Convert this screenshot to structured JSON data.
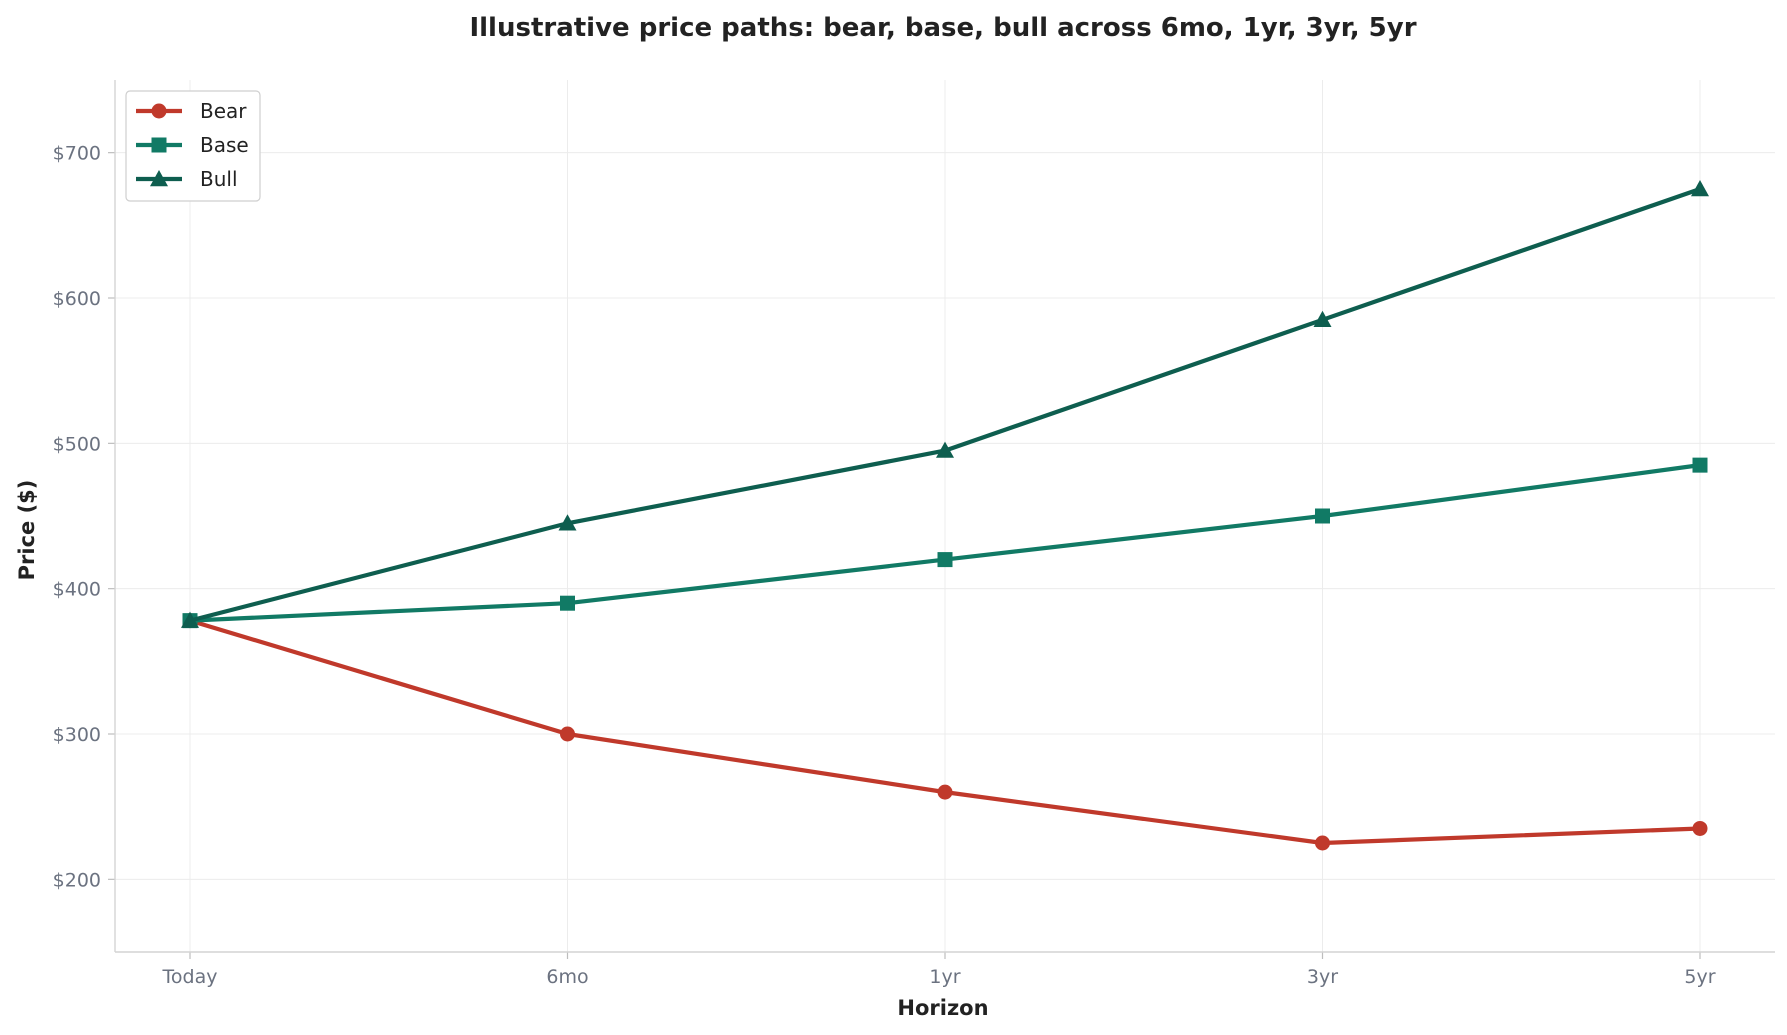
{
  "chart_data": {
    "type": "line",
    "title": "Illustrative price paths: bear, base, bull across 6mo, 1yr, 3yr, 5yr",
    "xlabel": "Horizon",
    "ylabel": "Price ($)",
    "categories": [
      "Today",
      "6mo",
      "1yr",
      "3yr",
      "5yr"
    ],
    "ylim": [
      150,
      750
    ],
    "yticks": [
      200,
      300,
      400,
      500,
      600,
      700
    ],
    "ytick_labels": [
      "$200",
      "$300",
      "$400",
      "$500",
      "$600",
      "$700"
    ],
    "grid": true,
    "legend_position": "top-left",
    "series": [
      {
        "name": "Bear",
        "values": [
          378,
          300,
          260,
          225,
          235
        ],
        "color": "#c0392b",
        "marker": "circle"
      },
      {
        "name": "Base",
        "values": [
          378,
          390,
          420,
          450,
          485
        ],
        "color": "#117a65",
        "marker": "square"
      },
      {
        "name": "Bull",
        "values": [
          378,
          445,
          495,
          585,
          675
        ],
        "color": "#0e5e4f",
        "marker": "triangle"
      }
    ]
  }
}
